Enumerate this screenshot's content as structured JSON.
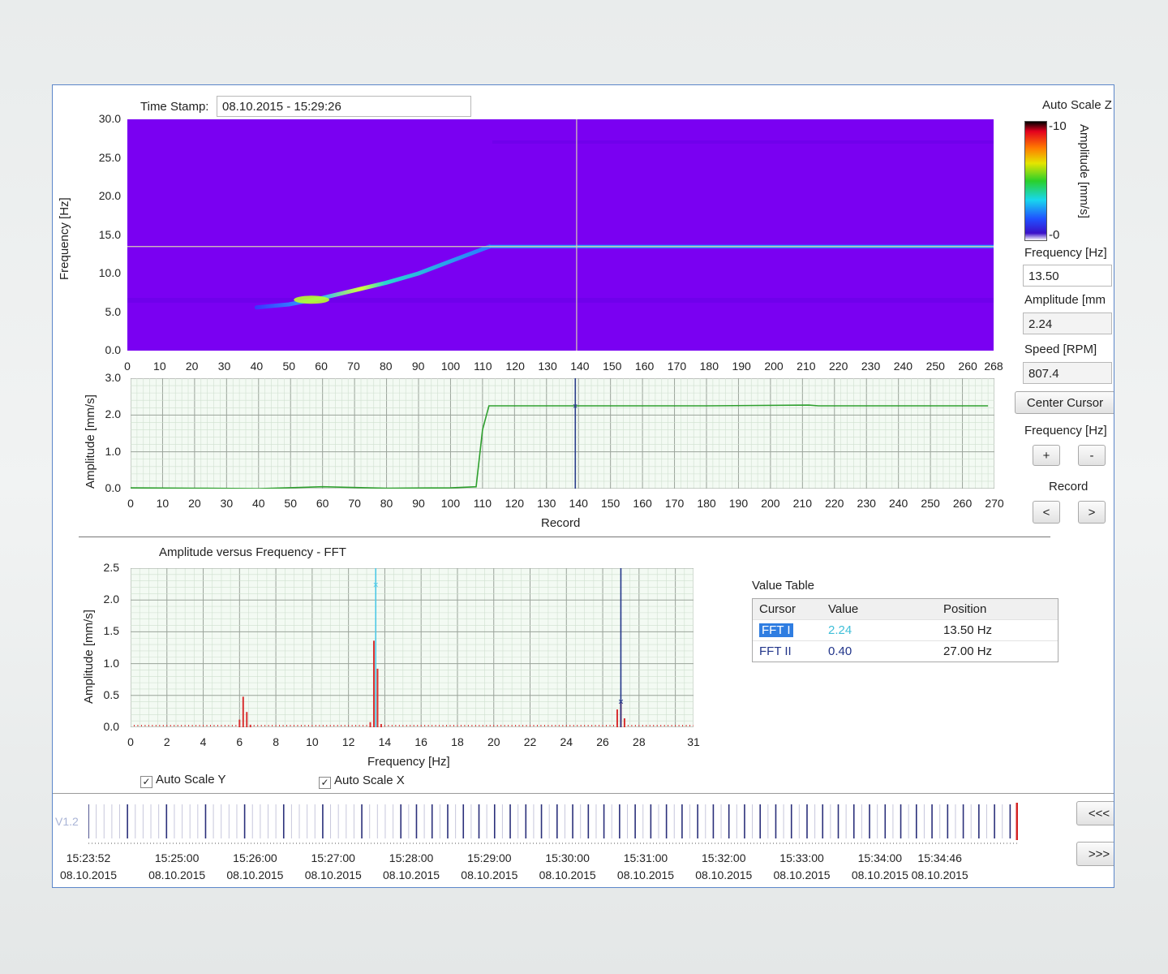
{
  "header": {
    "timestamp_label": "Time Stamp:",
    "timestamp_value": "08.10.2015 - 15:29:26"
  },
  "spectrogram": {
    "ylabel": "Frequency [Hz]",
    "y_ticks": [
      "30.0",
      "25.0",
      "20.0",
      "15.0",
      "10.0",
      "5.0",
      "0.0"
    ],
    "x_ticks": [
      "0",
      "10",
      "20",
      "30",
      "40",
      "50",
      "60",
      "70",
      "80",
      "90",
      "100",
      "110",
      "120",
      "130",
      "140",
      "150",
      "160",
      "170",
      "180",
      "190",
      "200",
      "210",
      "220",
      "230",
      "240",
      "250",
      "260",
      "268"
    ],
    "cursor_record": 139,
    "cursor_frequency": 13.5
  },
  "colorbar": {
    "title": "Auto Scale Z",
    "max_label": "10",
    "min_label": "0",
    "label": "Amplitude [mm/s]"
  },
  "side": {
    "freq_label": "Frequency [Hz]",
    "freq_value": "13.50",
    "amp_label": "Amplitude [mm",
    "amp_value": "2.24",
    "speed_label": "Speed [RPM]",
    "speed_value": "807.4",
    "center_cursor": "Center Cursor",
    "freq_step_label": "Frequency [Hz]",
    "plus": "+",
    "minus": "-",
    "record_label": "Record",
    "prev": "<",
    "next": ">"
  },
  "trend": {
    "ylabel": "Amplitude [mm/s]",
    "xlabel": "Record",
    "y_ticks": [
      "3.0",
      "2.0",
      "1.0",
      "0.0"
    ],
    "x_ticks": [
      "0",
      "10",
      "20",
      "30",
      "40",
      "50",
      "60",
      "70",
      "80",
      "90",
      "100",
      "110",
      "120",
      "130",
      "140",
      "150",
      "160",
      "170",
      "180",
      "190",
      "200",
      "210",
      "220",
      "230",
      "240",
      "250",
      "260",
      "270"
    ]
  },
  "fft": {
    "title": "Amplitude versus Frequency - FFT",
    "ylabel": "Amplitude [mm/s]",
    "xlabel": "Frequency [Hz]",
    "y_ticks": [
      "2.5",
      "2.0",
      "1.5",
      "1.0",
      "0.5",
      "0.0"
    ],
    "x_ticks": [
      "0",
      "2",
      "4",
      "6",
      "8",
      "10",
      "12",
      "14",
      "16",
      "18",
      "20",
      "22",
      "24",
      "26",
      "28",
      "31"
    ],
    "auto_scale_y": "Auto Scale Y",
    "auto_scale_x": "Auto Scale X",
    "check_mark": "✓"
  },
  "value_table": {
    "title": "Value Table",
    "columns": [
      "Cursor",
      "Value",
      "Position"
    ],
    "rows": [
      {
        "cursor": "FFT I",
        "value": "2.24",
        "position": "13.50 Hz"
      },
      {
        "cursor": "FFT II",
        "value": "0.40",
        "position": "27.00 Hz"
      }
    ]
  },
  "timeline": {
    "version": "V1.2",
    "btn_back": "<<<",
    "btn_fwd": ">>>",
    "ticks": [
      {
        "time": "15:23:52",
        "date": "08.10.2015"
      },
      {
        "time": "15:25:00",
        "date": "08.10.2015"
      },
      {
        "time": "15:26:00",
        "date": "08.10.2015"
      },
      {
        "time": "15:27:00",
        "date": "08.10.2015"
      },
      {
        "time": "15:28:00",
        "date": "08.10.2015"
      },
      {
        "time": "15:29:00",
        "date": "08.10.2015"
      },
      {
        "time": "15:30:00",
        "date": "08.10.2015"
      },
      {
        "time": "15:31:00",
        "date": "08.10.2015"
      },
      {
        "time": "15:32:00",
        "date": "08.10.2015"
      },
      {
        "time": "15:33:00",
        "date": "08.10.2015"
      },
      {
        "time": "15:34:00",
        "date": "08.10.2015"
      },
      {
        "time": "15:34:46",
        "date": "08.10.2015"
      }
    ]
  },
  "chart_data": [
    {
      "type": "heatmap",
      "xlim": [
        0,
        268
      ],
      "ylim": [
        0,
        30
      ],
      "ylabel": "Frequency [Hz]",
      "ridge": {
        "x": [
          40,
          50,
          60,
          70,
          80,
          90,
          100,
          112,
          268
        ],
        "y": [
          5.6,
          6.0,
          6.8,
          7.8,
          8.8,
          10.0,
          11.6,
          13.5,
          13.5
        ]
      },
      "colorbar_range": [
        0,
        10
      ]
    },
    {
      "type": "line",
      "xlabel": "Record",
      "ylabel": "Amplitude [mm/s]",
      "xlim": [
        0,
        270
      ],
      "ylim": [
        0,
        3
      ],
      "x": [
        0,
        20,
        40,
        60,
        80,
        100,
        108,
        110,
        112,
        140,
        180,
        212,
        215,
        240,
        268
      ],
      "y": [
        0.02,
        0.01,
        0.0,
        0.05,
        0.01,
        0.02,
        0.05,
        1.6,
        2.25,
        2.25,
        2.25,
        2.27,
        2.25,
        2.25,
        2.25
      ],
      "color": "#2fa02f"
    },
    {
      "type": "bar",
      "title": "Amplitude versus Frequency - FFT",
      "xlabel": "Frequency [Hz]",
      "ylabel": "Amplitude [mm/s]",
      "xlim": [
        0,
        31
      ],
      "ylim": [
        0,
        2.5
      ],
      "x": [
        6.0,
        6.2,
        6.4,
        6.6,
        13.2,
        13.4,
        13.6,
        13.8,
        26.8,
        27.0,
        27.2
      ],
      "values": [
        0.12,
        0.48,
        0.24,
        0.04,
        0.08,
        1.36,
        0.92,
        0.05,
        0.28,
        0.4,
        0.14
      ],
      "color": "#d83030",
      "cursors": [
        {
          "name": "FFT I",
          "x": 13.5,
          "y": 2.24,
          "color": "#4ec9e6"
        },
        {
          "name": "FFT II",
          "x": 27.0,
          "y": 0.4,
          "color": "#22358a"
        }
      ]
    }
  ]
}
